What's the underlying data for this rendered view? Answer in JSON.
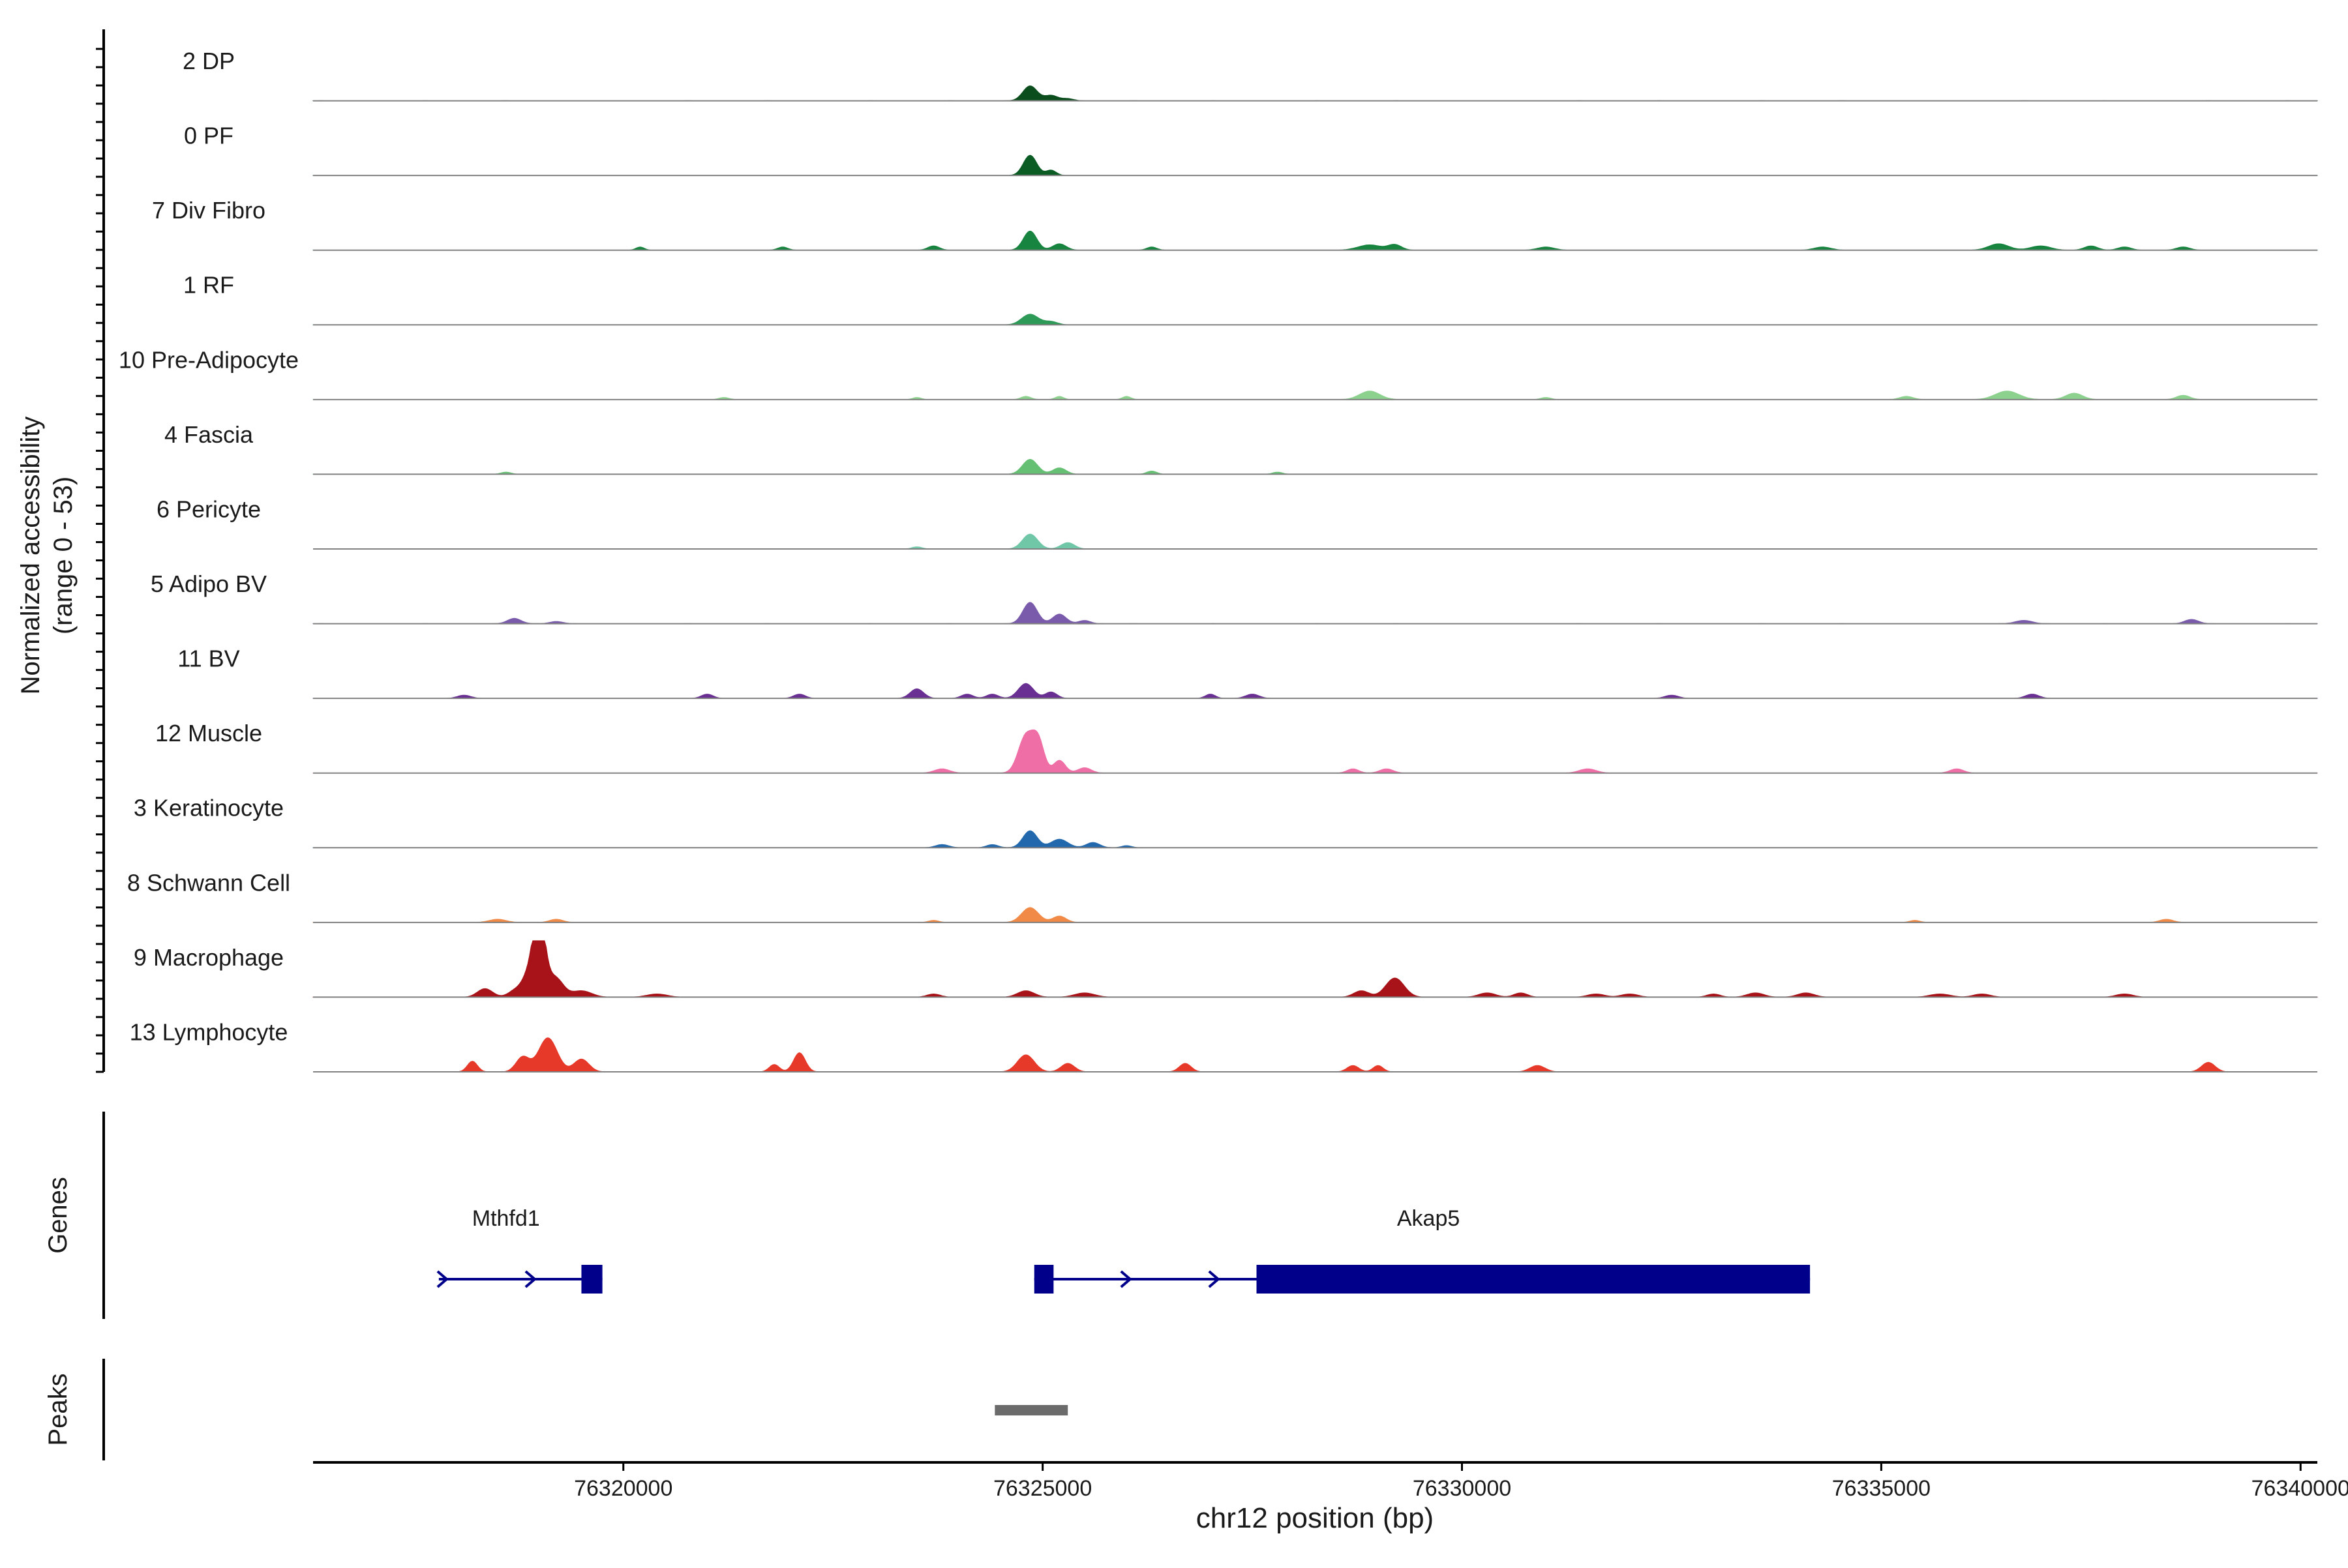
{
  "chart_data": {
    "type": "area",
    "title": "",
    "ylabel_line1": "Normalized accessibility",
    "ylabel_line2": "(range 0 - 53)",
    "y_range": [
      0,
      53
    ],
    "xlabel": "chr12 position (bp)",
    "xlim": [
      76316300,
      76340200
    ],
    "x_ticks": [
      76320000,
      76325000,
      76330000,
      76335000,
      76340000
    ],
    "x_tick_labels": [
      "76320000",
      "76325000",
      "76330000",
      "76335000",
      "76340000"
    ],
    "tracks": [
      {
        "label": "2 DP",
        "color": "#0b4d1d",
        "noise": 0.08,
        "peaks": [
          [
            76324850,
            14,
            85
          ],
          [
            76325100,
            5,
            80
          ],
          [
            76325300,
            2,
            70
          ]
        ]
      },
      {
        "label": "0 PF",
        "color": "#0b5c24",
        "noise": 0.05,
        "peaks": [
          [
            76324850,
            19,
            80
          ],
          [
            76325100,
            5,
            60
          ]
        ]
      },
      {
        "label": "7 Div Fibro",
        "color": "#17843f",
        "noise": 0.05,
        "peaks": [
          [
            76324850,
            18,
            80
          ],
          [
            76325200,
            6,
            80
          ],
          [
            76320200,
            3,
            50
          ],
          [
            76321900,
            3,
            60
          ],
          [
            76323700,
            4,
            70
          ],
          [
            76326300,
            3,
            60
          ],
          [
            76328900,
            5,
            140
          ],
          [
            76329200,
            5,
            80
          ],
          [
            76331000,
            3,
            100
          ],
          [
            76334300,
            3,
            100
          ],
          [
            76336400,
            6,
            120
          ],
          [
            76336900,
            4,
            120
          ],
          [
            76337500,
            4,
            80
          ],
          [
            76337900,
            3,
            80
          ],
          [
            76338600,
            3,
            80
          ]
        ]
      },
      {
        "label": "1 RF",
        "color": "#2e9a57",
        "noise": 0.05,
        "peaks": [
          [
            76324850,
            10,
            100
          ],
          [
            76325100,
            3,
            80
          ]
        ]
      },
      {
        "label": "10 Pre-Adipocyte",
        "color": "#8dd18e",
        "noise": 0.05,
        "peaks": [
          [
            76328900,
            8,
            120
          ],
          [
            76336500,
            8,
            140
          ],
          [
            76337300,
            6,
            100
          ],
          [
            76324800,
            3,
            60
          ],
          [
            76325200,
            3,
            50
          ],
          [
            76326000,
            3,
            50
          ],
          [
            76323500,
            2,
            50
          ],
          [
            76321200,
            2,
            60
          ],
          [
            76331000,
            2,
            60
          ],
          [
            76335300,
            3,
            80
          ],
          [
            76338600,
            4,
            80
          ]
        ]
      },
      {
        "label": "4 Fascia",
        "color": "#66c074",
        "noise": 0.05,
        "peaks": [
          [
            76324850,
            14,
            90
          ],
          [
            76325200,
            6,
            80
          ],
          [
            76318600,
            2,
            60
          ],
          [
            76326300,
            3,
            60
          ],
          [
            76327800,
            2,
            60
          ]
        ]
      },
      {
        "label": "6 Pericyte",
        "color": "#70c7a7",
        "noise": 0.05,
        "peaks": [
          [
            76324850,
            14,
            90
          ],
          [
            76325300,
            6,
            80
          ],
          [
            76323500,
            2,
            60
          ]
        ]
      },
      {
        "label": "5 Adipo BV",
        "color": "#7a5bab",
        "noise": 0.08,
        "peaks": [
          [
            76324850,
            20,
            85
          ],
          [
            76325200,
            9,
            80
          ],
          [
            76318700,
            5,
            80
          ],
          [
            76319200,
            2,
            80
          ],
          [
            76325500,
            3,
            70
          ],
          [
            76336700,
            3,
            100
          ],
          [
            76338700,
            4,
            80
          ]
        ]
      },
      {
        "label": "11 BV",
        "color": "#6a2f93",
        "noise": 0.02,
        "peaks": [
          [
            76324800,
            14,
            90
          ],
          [
            76325100,
            6,
            70
          ],
          [
            76323500,
            9,
            80
          ],
          [
            76321000,
            4,
            70
          ],
          [
            76322100,
            4,
            70
          ],
          [
            76318100,
            3,
            80
          ],
          [
            76324100,
            4,
            70
          ],
          [
            76324400,
            4,
            70
          ],
          [
            76327000,
            4,
            60
          ],
          [
            76327500,
            4,
            80
          ],
          [
            76332500,
            3,
            80
          ],
          [
            76336800,
            4,
            80
          ]
        ]
      },
      {
        "label": "12 Muscle",
        "color": "#ef6ea5",
        "noise": 0.02,
        "peaks": [
          [
            76324800,
            35,
            90
          ],
          [
            76324950,
            28,
            70
          ],
          [
            76325200,
            12,
            70
          ],
          [
            76325500,
            5,
            80
          ],
          [
            76323800,
            4,
            90
          ],
          [
            76328700,
            4,
            70
          ],
          [
            76329100,
            4,
            80
          ],
          [
            76331500,
            4,
            100
          ],
          [
            76335900,
            4,
            80
          ]
        ]
      },
      {
        "label": "3 Keratinocyte",
        "color": "#2268ad",
        "noise": 0.06,
        "peaks": [
          [
            76324850,
            16,
            85
          ],
          [
            76325200,
            8,
            100
          ],
          [
            76325600,
            5,
            80
          ],
          [
            76323800,
            3,
            80
          ],
          [
            76324400,
            3,
            70
          ],
          [
            76326000,
            2,
            60
          ]
        ]
      },
      {
        "label": "8 Schwann Cell",
        "color": "#f08a46",
        "noise": 0.04,
        "peaks": [
          [
            76324850,
            14,
            100
          ],
          [
            76325200,
            6,
            80
          ],
          [
            76318500,
            3,
            100
          ],
          [
            76319200,
            3,
            80
          ],
          [
            76323700,
            2,
            60
          ],
          [
            76335400,
            2,
            60
          ],
          [
            76338400,
            3,
            80
          ]
        ]
      },
      {
        "label": "9 Macrophage",
        "color": "#a71318",
        "noise": 0.03,
        "peaks": [
          [
            76319000,
            53,
            60
          ],
          [
            76318950,
            38,
            110
          ],
          [
            76319200,
            16,
            90
          ],
          [
            76319500,
            6,
            120
          ],
          [
            76318350,
            8,
            90
          ],
          [
            76318700,
            5,
            80
          ],
          [
            76320400,
            3,
            120
          ],
          [
            76329200,
            18,
            110
          ],
          [
            76328800,
            6,
            90
          ],
          [
            76324800,
            6,
            100
          ],
          [
            76325500,
            4,
            120
          ],
          [
            76323700,
            3,
            80
          ],
          [
            76330300,
            4,
            100
          ],
          [
            76330700,
            4,
            80
          ],
          [
            76331600,
            3,
            100
          ],
          [
            76332000,
            3,
            100
          ],
          [
            76333000,
            3,
            80
          ],
          [
            76333500,
            4,
            100
          ],
          [
            76334100,
            4,
            100
          ],
          [
            76335700,
            3,
            120
          ],
          [
            76336200,
            3,
            100
          ],
          [
            76337900,
            3,
            100
          ]
        ]
      },
      {
        "label": "13 Lymphocyte",
        "color": "#e6392a",
        "noise": 0.0,
        "peaks": [
          [
            76319100,
            32,
            110
          ],
          [
            76318800,
            14,
            80
          ],
          [
            76319500,
            12,
            90
          ],
          [
            76318200,
            10,
            60
          ],
          [
            76322100,
            18,
            70
          ],
          [
            76321800,
            7,
            60
          ],
          [
            76324800,
            16,
            100
          ],
          [
            76325300,
            8,
            80
          ],
          [
            76326700,
            8,
            70
          ],
          [
            76328700,
            6,
            70
          ],
          [
            76329000,
            6,
            60
          ],
          [
            76330900,
            6,
            90
          ],
          [
            76338900,
            9,
            80
          ]
        ]
      }
    ],
    "genes_label": "Genes",
    "genes": [
      {
        "name": "Mthfd1",
        "start": 76317800,
        "end": 76319750,
        "exons": [
          [
            76319500,
            76319750
          ]
        ],
        "label_pos": 76318600,
        "strand": "+"
      },
      {
        "name": "Akap5",
        "start": 76324900,
        "end": 76334150,
        "exons": [
          [
            76324900,
            76325130
          ],
          [
            76327550,
            76334150
          ]
        ],
        "label_pos": 76329600,
        "strand": "+"
      }
    ],
    "peaks_label": "Peaks",
    "peaks": [
      [
        76324430,
        76325300
      ]
    ],
    "colors": {
      "gene": "#00008b",
      "peak": "#6b6b6b",
      "baseline": "#808080"
    }
  }
}
